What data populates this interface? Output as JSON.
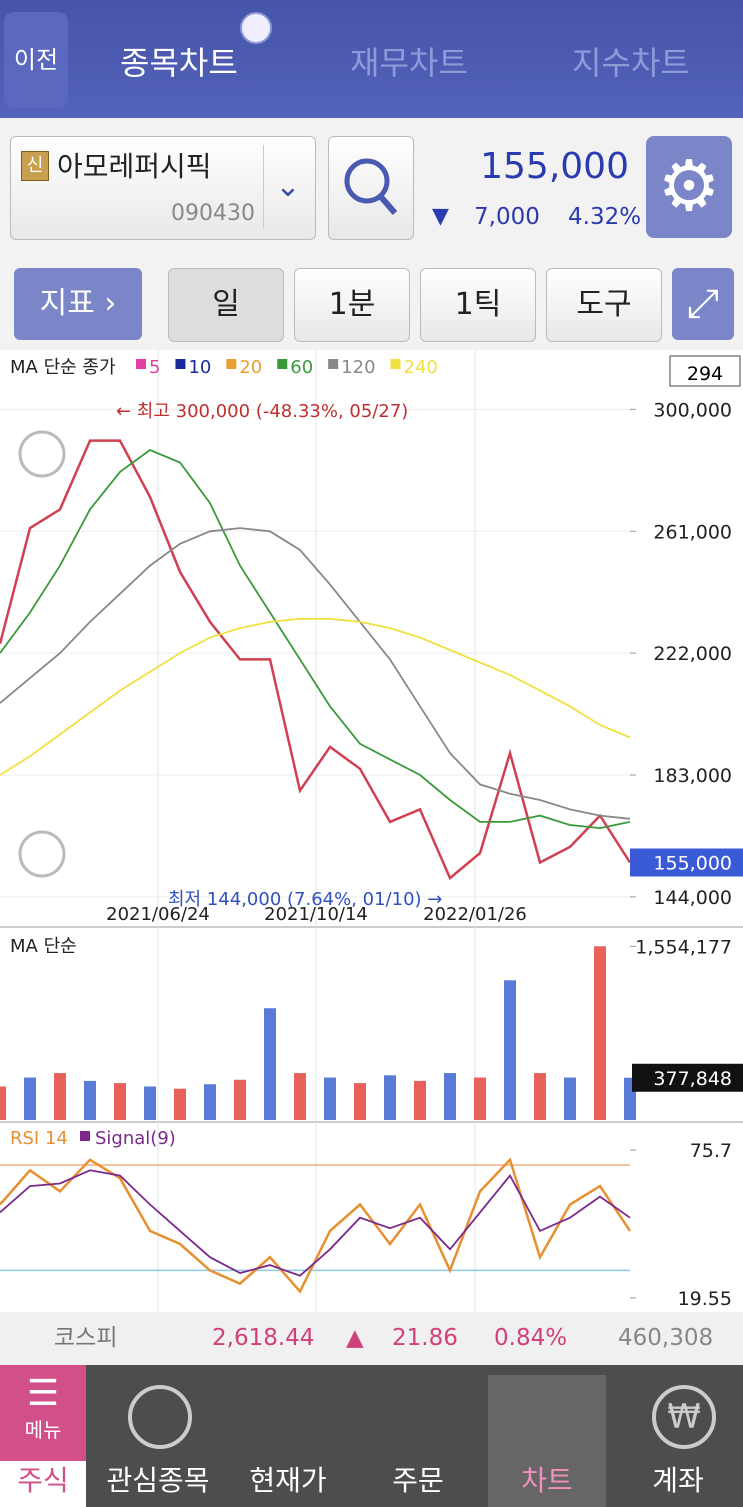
{
  "header": {
    "back": "이전",
    "tabs": [
      "종목차트",
      "재무차트",
      "지수차트"
    ]
  },
  "stock": {
    "badge": "신",
    "name": "아모레퍼시픽",
    "code": "090430",
    "price": "155,000",
    "change_sign": "▼",
    "change": "7,000",
    "change_pct": "4.32%"
  },
  "toolbar": {
    "indicator": "지표",
    "buttons": [
      "일",
      "1분",
      "1틱",
      "도구"
    ]
  },
  "price_chart": {
    "type": "line",
    "legend_title": "MA 단순 종가",
    "legend": [
      {
        "name": "5",
        "color": "#e040a0"
      },
      {
        "name": "10",
        "color": "#1a2a9a"
      },
      {
        "name": "20",
        "color": "#e8a030"
      },
      {
        "name": "60",
        "color": "#3a9a3a"
      },
      {
        "name": "120",
        "color": "#888888"
      },
      {
        "name": "240",
        "color": "#f0e040"
      }
    ],
    "count": "294",
    "high_note": "← 최고 300,000 (-48.33%, 05/27)",
    "low_note": "최저 144,000 (7.64%, 01/10) →",
    "date_labels": [
      "2021/06/24",
      "2021/10/14",
      "2022/01/26"
    ],
    "current": {
      "value": 155000,
      "label": "155,000"
    },
    "ylim": [
      135000,
      319000
    ],
    "yticks": [
      {
        "value": 300000,
        "label": "300,000"
      },
      {
        "value": 261000,
        "label": "261,000"
      },
      {
        "value": 222000,
        "label": "222,000"
      },
      {
        "value": 183000,
        "label": "183,000"
      },
      {
        "value": 144000,
        "label": "144,000"
      }
    ],
    "series": [
      {
        "name": "close",
        "color": "#d04050",
        "values": [
          225000,
          262000,
          268000,
          290000,
          290000,
          272000,
          248000,
          232000,
          220000,
          220000,
          178000,
          192000,
          185000,
          168000,
          172000,
          150000,
          158000,
          190000,
          155000,
          160000,
          170000,
          155000
        ]
      },
      {
        "name": "60",
        "color": "#3a9a3a",
        "values": [
          222000,
          235000,
          250000,
          268000,
          280000,
          287000,
          283000,
          270000,
          250000,
          235000,
          220000,
          205000,
          193000,
          188000,
          183000,
          175000,
          168000,
          168000,
          170000,
          167000,
          166000,
          168000
        ]
      },
      {
        "name": "120",
        "color": "#888888",
        "values": [
          206000,
          214000,
          222000,
          232000,
          241000,
          250000,
          257000,
          261000,
          262000,
          261000,
          255000,
          244000,
          232000,
          220000,
          205000,
          190000,
          180000,
          177000,
          175000,
          172000,
          170000,
          169000
        ]
      },
      {
        "name": "240",
        "color": "#f0e040",
        "values": [
          183000,
          189000,
          196000,
          203000,
          210000,
          216000,
          222000,
          227000,
          230000,
          232000,
          233000,
          233000,
          232000,
          230000,
          227000,
          223000,
          219000,
          215000,
          210000,
          205000,
          199000,
          195000
        ]
      }
    ]
  },
  "volume_chart": {
    "type": "bar",
    "title": "MA 단순",
    "current": {
      "value": 377848,
      "label": "377,848"
    },
    "ylim": [
      0,
      1700000
    ],
    "yticks": [
      {
        "value": 1554177,
        "label": "1,554,177"
      }
    ],
    "colors": [
      "#e8605a",
      "#5a7ad8"
    ],
    "values": [
      300000,
      380000,
      420000,
      350000,
      330000,
      300000,
      280000,
      320000,
      360000,
      1000000,
      420000,
      380000,
      330000,
      400000,
      350000,
      420000,
      380000,
      1250000,
      420000,
      380000,
      1554177,
      377848
    ]
  },
  "rsi_chart": {
    "type": "line",
    "title": "RSI 14",
    "signal_label": "Signal(9)",
    "ylim": [
      14.2,
      85.2
    ],
    "yticks": [
      75.7,
      19.55
    ],
    "reference_lines": [
      {
        "value": 70,
        "color": "#f0b080"
      },
      {
        "value": 30,
        "color": "#90c8e8"
      }
    ],
    "series": [
      {
        "name": "RSI 14",
        "color": "#e89030",
        "values": [
          55,
          68,
          60,
          72,
          65,
          45,
          40,
          30,
          25,
          35,
          22,
          45,
          55,
          40,
          55,
          30,
          60,
          72,
          35,
          55,
          62,
          45
        ]
      },
      {
        "name": "Signal(9)",
        "color": "#7a2a8a",
        "values": [
          52,
          62,
          63,
          68,
          66,
          55,
          45,
          35,
          29,
          32,
          28,
          38,
          50,
          46,
          50,
          38,
          52,
          66,
          45,
          50,
          58,
          50
        ]
      }
    ]
  },
  "market": {
    "name": "코스피",
    "index": "2,618.44",
    "sign": "▲",
    "change": "21.86",
    "pct": "0.84%",
    "volume": "460,308"
  },
  "nav": {
    "menu": "메뉴",
    "items": [
      "주식",
      "관심종목",
      "현재가",
      "주문",
      "차트",
      "계좌"
    ]
  }
}
